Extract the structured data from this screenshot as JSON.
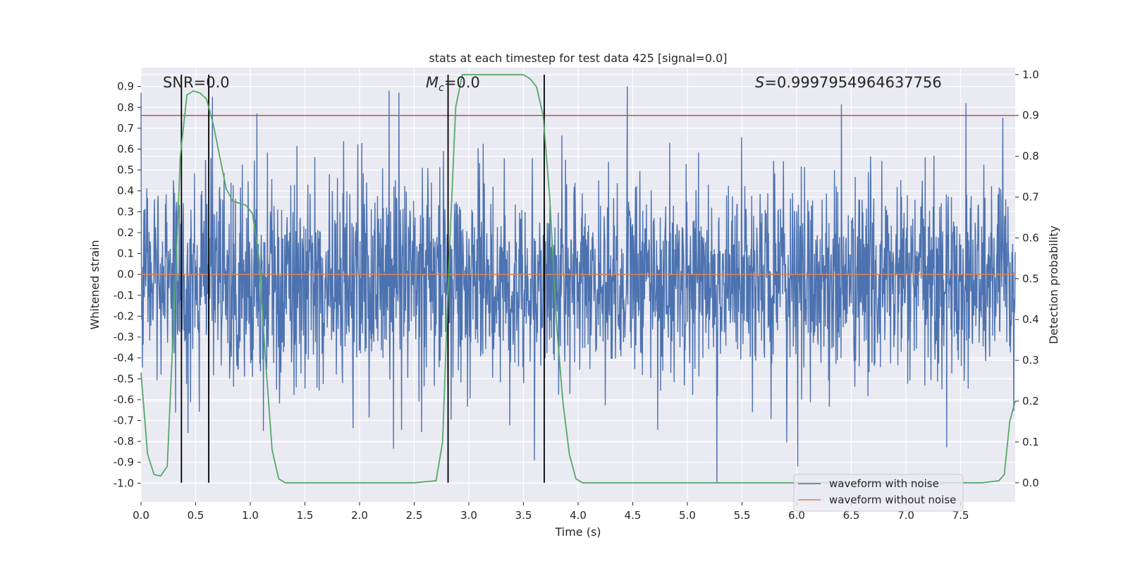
{
  "chart_data": {
    "type": "line",
    "title": "stats at each timestep for test data 425 [signal=0.0]",
    "xlabel": "Time (s)",
    "ylabel_left": "Whitened strain",
    "ylabel_right": "Detection probability",
    "xlim": [
      0.0,
      8.0
    ],
    "ylim_left": [
      -1.09,
      0.99
    ],
    "ylim_right": [
      -0.047,
      1.017
    ],
    "x_ticks": [
      "0.0",
      "0.5",
      "1.0",
      "1.5",
      "2.0",
      "2.5",
      "3.0",
      "3.5",
      "4.0",
      "4.5",
      "5.0",
      "5.5",
      "6.0",
      "6.5",
      "7.0",
      "7.5"
    ],
    "y_ticks_left": [
      "0.9",
      "0.8",
      "0.7",
      "0.6",
      "0.5",
      "0.4",
      "0.3",
      "0.2",
      "0.1",
      "0.0",
      "-0.1",
      "-0.2",
      "-0.3",
      "-0.4",
      "-0.5",
      "-0.6",
      "-0.7",
      "-0.8",
      "-0.9",
      "-1.0"
    ],
    "y_ticks_right": [
      "1.0",
      "0.9",
      "0.8",
      "0.7",
      "0.6",
      "0.5",
      "0.4",
      "0.3",
      "0.2",
      "0.1",
      "0.0"
    ],
    "grid": true,
    "annotations": {
      "snr": "SNR=0.0",
      "mc_symbol": "M",
      "mc_sub": "c",
      "mc_value": "=0.0",
      "s_symbol": "S",
      "s_value": "=0.9997954964637756"
    },
    "threshold": 0.9,
    "vertical_lines": [
      0.37,
      0.62,
      2.81,
      3.69
    ],
    "series": [
      {
        "name": "waveform with noise",
        "color": "#4c72b0",
        "description": "whitened noisy strain, amplitude roughly between -1.0 and 0.9",
        "peaks": [
          [
            0.0,
            0.87
          ],
          [
            0.43,
            -0.76
          ],
          [
            0.62,
            -0.93
          ],
          [
            1.12,
            -0.75
          ],
          [
            2.27,
            0.88
          ],
          [
            2.36,
            0.87
          ],
          [
            3.6,
            -0.89
          ],
          [
            4.45,
            0.9
          ],
          [
            5.27,
            -1.0
          ],
          [
            6.01,
            -0.92
          ],
          [
            7.55,
            0.82
          ]
        ]
      },
      {
        "name": "waveform without noise",
        "color": "#dd8452",
        "value": 0.0
      },
      {
        "name": "detection probability",
        "color": "#55a868",
        "axis": "right",
        "x": [
          0.0,
          0.06,
          0.12,
          0.18,
          0.24,
          0.3,
          0.36,
          0.42,
          0.48,
          0.54,
          0.6,
          0.66,
          0.72,
          0.78,
          0.84,
          0.9,
          0.96,
          1.02,
          1.08,
          1.14,
          1.2,
          1.26,
          1.32,
          1.5,
          2.0,
          2.5,
          2.7,
          2.76,
          2.82,
          2.88,
          2.94,
          3.0,
          3.5,
          3.56,
          3.62,
          3.68,
          3.74,
          3.8,
          3.86,
          3.92,
          3.98,
          4.04,
          4.1,
          5.0,
          6.0,
          7.0,
          7.7,
          7.85,
          7.9,
          7.95,
          8.0
        ],
        "values": [
          0.27,
          0.07,
          0.02,
          0.017,
          0.04,
          0.4,
          0.8,
          0.95,
          0.96,
          0.955,
          0.94,
          0.88,
          0.8,
          0.72,
          0.69,
          0.685,
          0.68,
          0.66,
          0.55,
          0.3,
          0.08,
          0.01,
          0.0,
          0.0,
          0.0,
          0.0,
          0.005,
          0.1,
          0.55,
          0.92,
          1.0,
          1.0,
          1.0,
          0.99,
          0.97,
          0.9,
          0.7,
          0.4,
          0.2,
          0.07,
          0.01,
          0.0,
          0.0,
          0.0,
          0.0,
          0.0,
          0.0,
          0.005,
          0.02,
          0.15,
          0.2
        ]
      }
    ],
    "legend": [
      "waveform with noise",
      "waveform without noise"
    ]
  },
  "colors": {
    "background": "#eaeaf2",
    "grid": "#ffffff",
    "noisy": "#4c72b0",
    "clean": "#dd8452",
    "prob": "#55a868",
    "threshold": "#c44e52",
    "vline": "#000000"
  }
}
